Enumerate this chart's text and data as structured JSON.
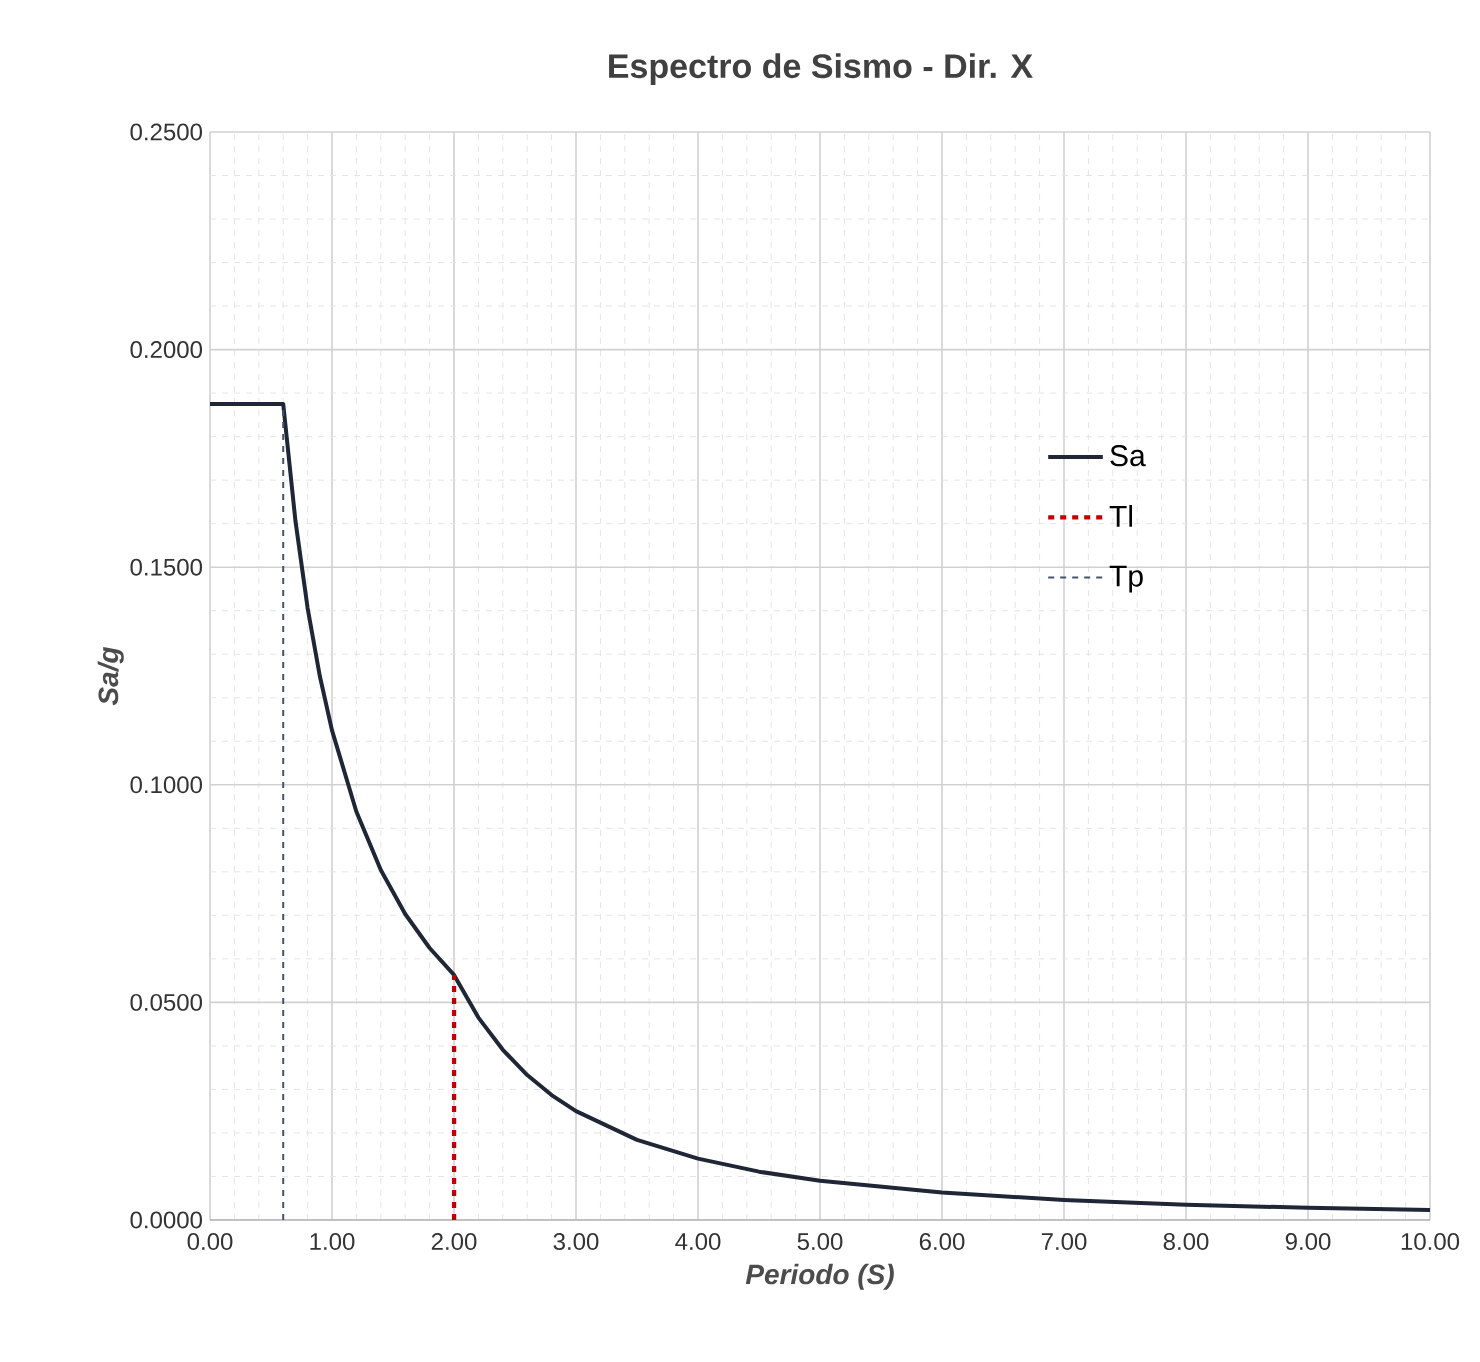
{
  "chart_data": {
    "type": "line",
    "title": "Espectro de Sismo - Dir. X",
    "xlabel": "Periodo (S)",
    "ylabel": "Sa/g",
    "xlim": [
      0,
      10
    ],
    "ylim": [
      0,
      0.25
    ],
    "xticks": [
      {
        "value": 0,
        "label": "0.00"
      },
      {
        "value": 1,
        "label": "1.00"
      },
      {
        "value": 2,
        "label": "2.00"
      },
      {
        "value": 3,
        "label": "3.00"
      },
      {
        "value": 4,
        "label": "4.00"
      },
      {
        "value": 5,
        "label": "5.00"
      },
      {
        "value": 6,
        "label": "6.00"
      },
      {
        "value": 7,
        "label": "7.00"
      },
      {
        "value": 8,
        "label": "8.00"
      },
      {
        "value": 9,
        "label": "9.00"
      },
      {
        "value": 10,
        "label": "10.00"
      }
    ],
    "yticks": [
      {
        "value": 0,
        "label": "0.0000"
      },
      {
        "value": 0.05,
        "label": "0.0500"
      },
      {
        "value": 0.1,
        "label": "0.1000"
      },
      {
        "value": 0.15,
        "label": "0.1500"
      },
      {
        "value": 0.2,
        "label": "0.2000"
      },
      {
        "value": 0.25,
        "label": "0.2500"
      }
    ],
    "grid": true,
    "legend": "right",
    "marker": "none",
    "series": [
      {
        "name": "Sa",
        "color": "#1f2635",
        "line_style": "solid",
        "x": [
          0,
          0.6,
          0.7,
          0.8,
          0.9,
          1.0,
          1.2,
          1.4,
          1.6,
          1.8,
          2.0,
          2.2,
          2.4,
          2.6,
          2.8,
          3.0,
          3.5,
          4.0,
          4.5,
          5.0,
          6.0,
          7.0,
          8.0,
          9.0,
          10.0
        ],
        "values": [
          0.1875,
          0.1875,
          0.1607,
          0.1406,
          0.125,
          0.1125,
          0.0938,
          0.0804,
          0.0703,
          0.0625,
          0.0563,
          0.0465,
          0.0391,
          0.0333,
          0.0287,
          0.025,
          0.0184,
          0.0141,
          0.0111,
          0.009,
          0.0063,
          0.0046,
          0.0035,
          0.0028,
          0.0023
        ]
      },
      {
        "name": "Tl",
        "color": "#c00000",
        "line_style": "dashed",
        "x": [
          2,
          2
        ],
        "values": [
          0,
          0.0563
        ]
      },
      {
        "name": "Tp",
        "color": "#44546a",
        "line_style": "dashed",
        "x": [
          0.6,
          0.6
        ],
        "values": [
          0,
          0.1875
        ]
      }
    ]
  }
}
